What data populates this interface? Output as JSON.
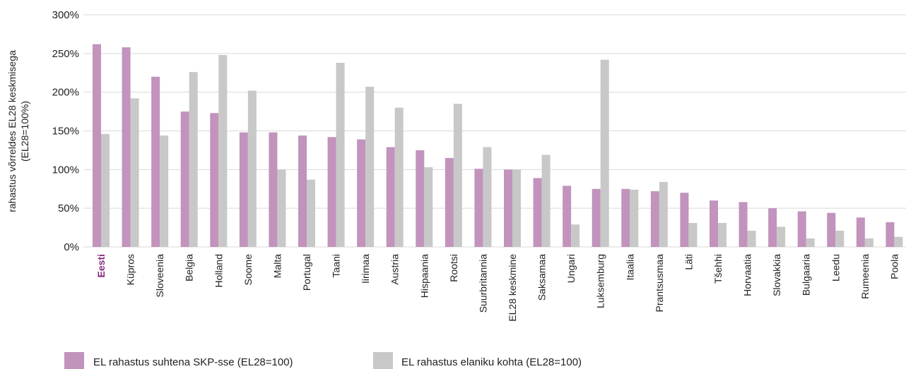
{
  "chart_data": {
    "type": "bar",
    "categories": [
      "Eesti",
      "Küpros",
      "Sloveenia",
      "Belgia",
      "Holland",
      "Soome",
      "Malta",
      "Portugal",
      "Taani",
      "Iirimaa",
      "Austria",
      "Hispaania",
      "Rootsi",
      "Suurbritannia",
      "EL28 keskmine",
      "Saksamaa",
      "Ungari",
      "Luksemburg",
      "Itaalia",
      "Prantsusmaa",
      "Läti",
      "Tšehhi",
      "Horvaatia",
      "Slovakkia",
      "Bulgaaria",
      "Leedu",
      "Rumeenia",
      "Poola"
    ],
    "highlight_category": "Eesti",
    "series": [
      {
        "name": "EL rahastus suhtena SKP-sse (EL28=100)",
        "color": "#c193bd",
        "values": [
          262,
          258,
          220,
          175,
          173,
          148,
          148,
          144,
          142,
          139,
          129,
          125,
          115,
          101,
          100,
          89,
          79,
          75,
          75,
          72,
          70,
          60,
          58,
          50,
          46,
          44,
          38,
          32
        ]
      },
      {
        "name": "EL rahastus elaniku kohta (EL28=100)",
        "color": "#c8c8c8",
        "values": [
          146,
          192,
          144,
          226,
          248,
          202,
          100,
          87,
          238,
          207,
          180,
          103,
          185,
          129,
          100,
          119,
          29,
          242,
          74,
          84,
          31,
          31,
          21,
          26,
          11,
          21,
          11,
          13
        ]
      }
    ],
    "ylabel_line1": "rahastus võrreldes EL28 keskmisega",
    "ylabel_line2": "(EL28=100%)",
    "yticks": [
      "0%",
      "50%",
      "100%",
      "150%",
      "200%",
      "250%",
      "300%"
    ],
    "ylim": [
      0,
      300
    ],
    "grid": true,
    "legend_position": "bottom-left"
  }
}
